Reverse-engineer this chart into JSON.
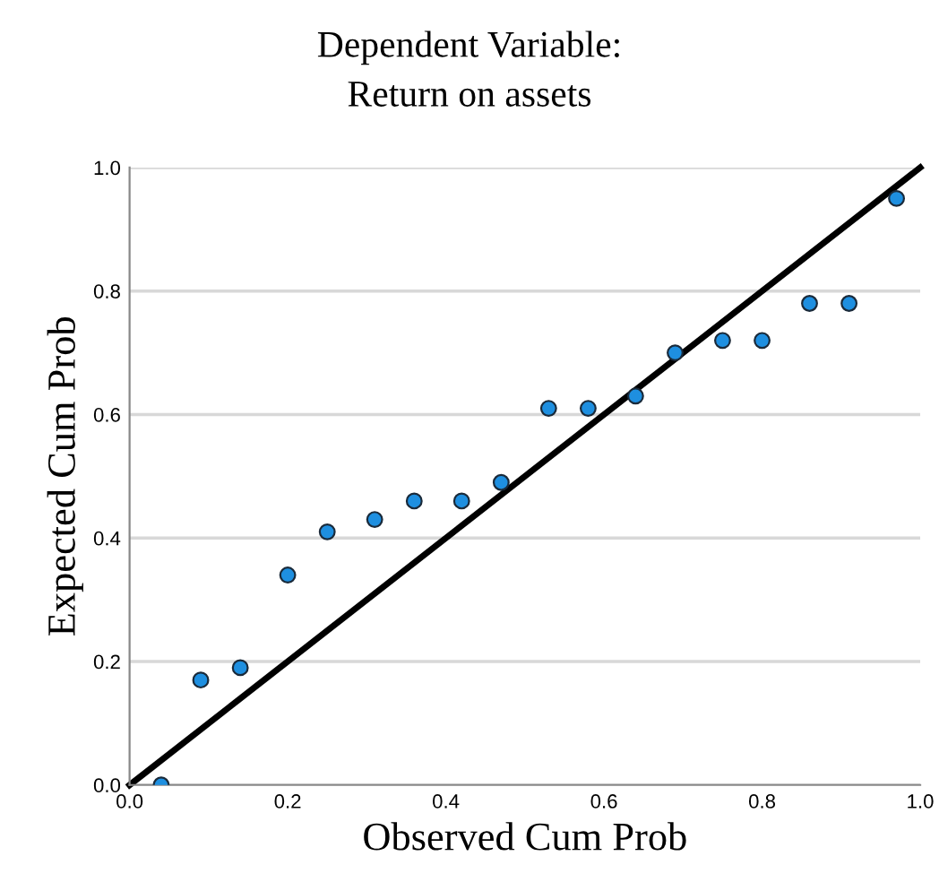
{
  "chart_data": {
    "type": "scatter",
    "title": "Dependent Variable:\nReturn on assets",
    "xlabel": "Observed Cum Prob",
    "ylabel": "Expected Cum Prob",
    "series": [
      {
        "color": "#1e8fe0",
        "marker": "circle",
        "x": [
          0.04,
          0.09,
          0.14,
          0.2,
          0.25,
          0.31,
          0.36,
          0.42,
          0.47,
          0.53,
          0.58,
          0.64,
          0.69,
          0.75,
          0.8,
          0.86,
          0.91,
          0.97
        ],
        "values": [
          0.0,
          0.17,
          0.19,
          0.34,
          0.41,
          0.43,
          0.46,
          0.46,
          0.49,
          0.61,
          0.61,
          0.63,
          0.7,
          0.72,
          0.72,
          0.78,
          0.78,
          0.95
        ]
      },
      {
        "type": "line",
        "color": "#000000",
        "marker": "none",
        "line_style": "solid",
        "x": [
          0,
          1
        ],
        "values": [
          0,
          1
        ]
      }
    ],
    "xlim": [
      0,
      1
    ],
    "ylim": [
      0,
      1
    ],
    "xticks": [
      {
        "value": 0,
        "label": "0.0"
      },
      {
        "value": 0.2,
        "label": "0.2"
      },
      {
        "value": 0.4,
        "label": "0.4"
      },
      {
        "value": 0.6,
        "label": "0.6"
      },
      {
        "value": 0.8,
        "label": "0.8"
      },
      {
        "value": 1,
        "label": "1.0"
      }
    ],
    "yticks": [
      {
        "value": 0,
        "label": "0.0"
      },
      {
        "value": 0.2,
        "label": "0.2"
      },
      {
        "value": 0.4,
        "label": "0.4"
      },
      {
        "value": 0.6,
        "label": "0.6"
      },
      {
        "value": 0.8,
        "label": "0.8"
      },
      {
        "value": 1,
        "label": "1.0"
      }
    ],
    "grid": "y"
  }
}
